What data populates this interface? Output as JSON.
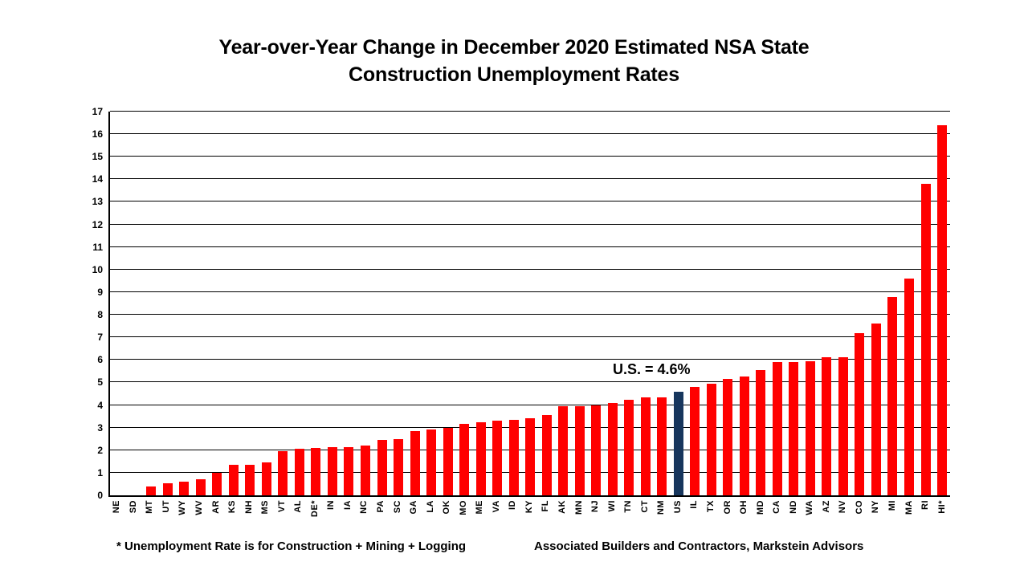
{
  "title": {
    "line1": "Year-over-Year Change in December 2020 Estimated NSA State",
    "line2": "Construction Unemployment Rates"
  },
  "chart_data": {
    "type": "bar",
    "title": "Year-over-Year Change in December 2020 Estimated NSA State Construction Unemployment Rates",
    "categories": [
      "NE",
      "SD",
      "MT",
      "UT",
      "WY",
      "WV",
      "AR",
      "KS",
      "NH",
      "MS",
      "VT",
      "AL",
      "DE*",
      "IN",
      "IA",
      "NC",
      "PA",
      "SC",
      "GA",
      "LA",
      "OK",
      "MO",
      "ME",
      "VA",
      "ID",
      "KY",
      "FL",
      "AK",
      "MN",
      "NJ",
      "WI",
      "TN",
      "CT",
      "NM",
      "US",
      "IL",
      "TX",
      "OR",
      "OH",
      "MD",
      "CA",
      "ND",
      "WA",
      "AZ",
      "NV",
      "CO",
      "NY",
      "MI",
      "MA",
      "RI",
      "HI*"
    ],
    "values": [
      0,
      0,
      0.4,
      0.55,
      0.6,
      0.7,
      1.0,
      1.35,
      1.35,
      1.45,
      1.95,
      2.05,
      2.1,
      2.15,
      2.15,
      2.2,
      2.45,
      2.5,
      2.85,
      2.9,
      3.0,
      3.15,
      3.25,
      3.3,
      3.35,
      3.4,
      3.55,
      3.95,
      3.95,
      4.0,
      4.1,
      4.25,
      4.35,
      4.35,
      4.6,
      4.8,
      4.95,
      5.15,
      5.25,
      5.55,
      5.9,
      5.9,
      5.95,
      6.1,
      6.1,
      7.2,
      7.6,
      8.8,
      9.6,
      13.8,
      16.4
    ],
    "xlabel": "",
    "ylabel": "",
    "ylim": [
      0,
      17
    ],
    "ytick_step": 1,
    "grid": true,
    "legend": "none",
    "highlight_category": "US",
    "annotation": {
      "text": "U.S. = 4.6%",
      "target_category": "US"
    },
    "colors": {
      "bar_default": "#FF0000",
      "bar_highlight": "#17365D",
      "gridline": "#000000",
      "axis": "#000000",
      "text": "#000000"
    }
  },
  "footnotes": {
    "left": "* Unemployment Rate is for Construction + Mining + Logging",
    "right": "Associated Builders and Contractors, Markstein Advisors"
  }
}
